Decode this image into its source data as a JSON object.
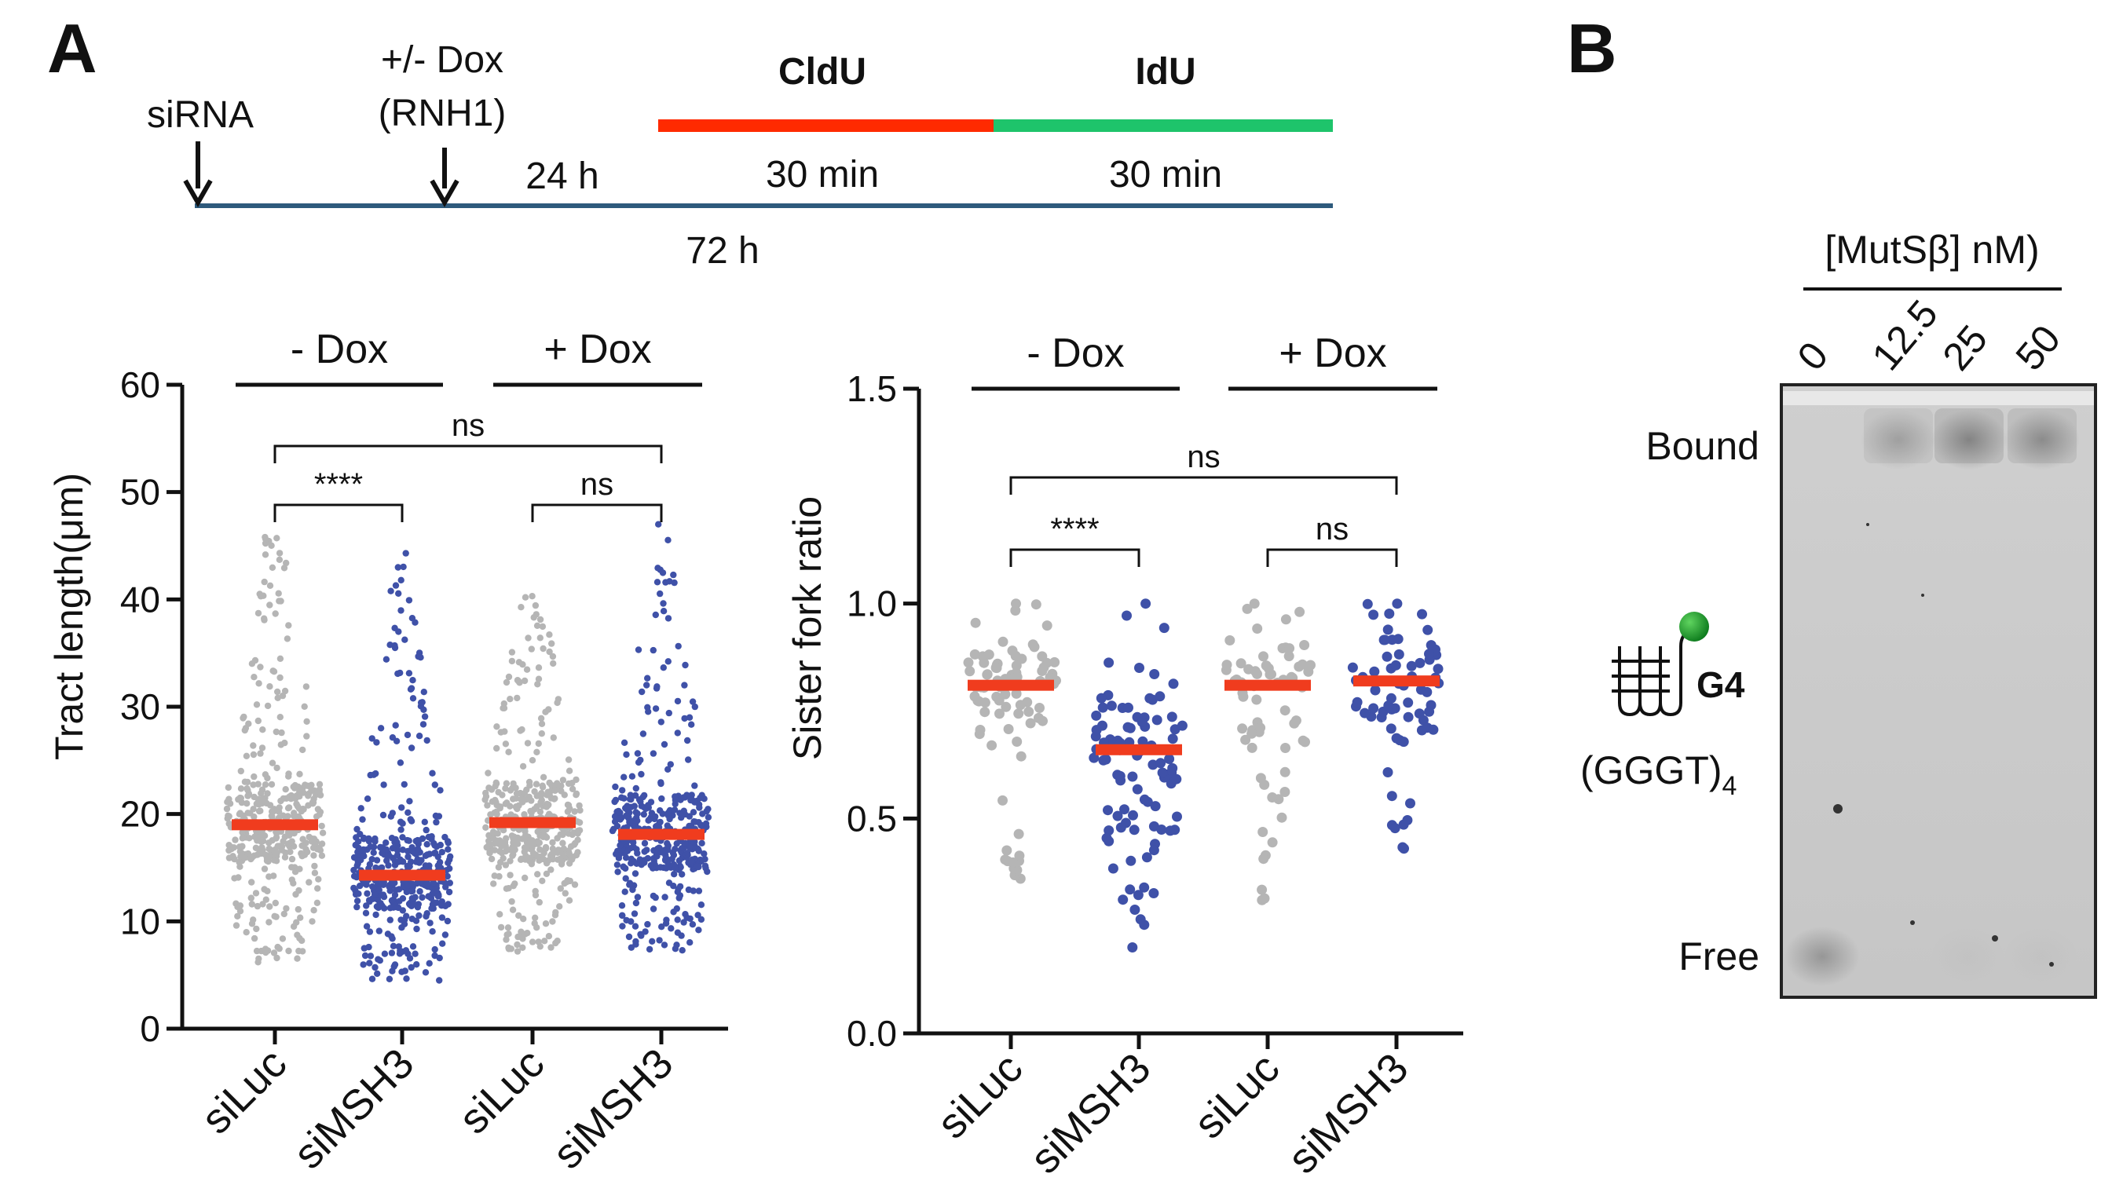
{
  "panels": {
    "a_label": "A",
    "b_label": "B"
  },
  "timeline": {
    "sirna_label": "siRNA",
    "dox_label_line1": "+/- Dox",
    "dox_label_line2": "(RNH1)",
    "interval_24h": "24 h",
    "interval_72h": "72 h",
    "cldu_label": "CldU",
    "idu_label": "IdU",
    "cldu_duration": "30 min",
    "idu_duration": "30 min",
    "colors": {
      "cldu": "#ff2a00",
      "idu": "#1ec46b",
      "baseline": "#2e5a7c"
    }
  },
  "chart_data": [
    {
      "type": "scatter",
      "subtype": "dot-plot with median bars",
      "ylabel": "Tract length(μm)",
      "ylim": [
        0,
        60
      ],
      "yticks": [
        0,
        10,
        20,
        30,
        40,
        50,
        60
      ],
      "categories": [
        "siLuc",
        "siMSH3",
        "siLuc",
        "siMSH3"
      ],
      "groups": [
        {
          "label": "- Dox",
          "categories": [
            0,
            1
          ]
        },
        {
          "label": "+ Dox",
          "categories": [
            2,
            3
          ]
        }
      ],
      "series": [
        {
          "name": "siLuc (- Dox)",
          "color": "#b5b5b5",
          "median": 19.0,
          "min": 6.2,
          "max": 45.8,
          "q1": 15.5,
          "q3": 22.8,
          "n": 430
        },
        {
          "name": "siMSH3 (- Dox)",
          "color": "#3f51a8",
          "median": 14.3,
          "min": 4.5,
          "max": 44.3,
          "q1": 11.2,
          "q3": 17.9,
          "n": 430
        },
        {
          "name": "siLuc (+ Dox)",
          "color": "#b5b5b5",
          "median": 19.2,
          "min": 7.2,
          "max": 40.3,
          "q1": 15.6,
          "q3": 23.0,
          "n": 430
        },
        {
          "name": "siMSH3 (+ Dox)",
          "color": "#3f51a8",
          "median": 18.1,
          "min": 7.3,
          "max": 47.0,
          "q1": 14.8,
          "q3": 21.8,
          "n": 430
        }
      ],
      "median_color": "#f03c1e",
      "comparisons": [
        {
          "from": 0,
          "to": 1,
          "label": "****"
        },
        {
          "from": 2,
          "to": 3,
          "label": "ns"
        },
        {
          "from": 0,
          "to": 3,
          "label": "ns"
        }
      ]
    },
    {
      "type": "scatter",
      "subtype": "dot-plot with median bars",
      "ylabel": "Sister fork ratio",
      "ylim": [
        0.0,
        1.5
      ],
      "yticks": [
        0.0,
        0.5,
        1.0,
        1.5
      ],
      "ytick_labels": [
        "0.0",
        "0.5",
        "1.0",
        "1.5"
      ],
      "categories": [
        "siLuc",
        "siMSH3",
        "siLuc",
        "siMSH3"
      ],
      "groups": [
        {
          "label": "- Dox",
          "categories": [
            0,
            1
          ]
        },
        {
          "label": "+ Dox",
          "categories": [
            2,
            3
          ]
        }
      ],
      "series": [
        {
          "name": "siLuc (- Dox)",
          "color": "#b5b5b5",
          "median": 0.81,
          "min": 0.36,
          "max": 1.0,
          "q1": 0.72,
          "q3": 0.9,
          "n": 85
        },
        {
          "name": "siMSH3 (- Dox)",
          "color": "#3f51a8",
          "median": 0.66,
          "min": 0.2,
          "max": 1.0,
          "q1": 0.47,
          "q3": 0.81,
          "n": 95
        },
        {
          "name": "siLuc (+ Dox)",
          "color": "#b5b5b5",
          "median": 0.81,
          "min": 0.31,
          "max": 1.0,
          "q1": 0.65,
          "q3": 0.92,
          "n": 70
        },
        {
          "name": "siMSH3 (+ Dox)",
          "color": "#3f51a8",
          "median": 0.82,
          "min": 0.43,
          "max": 1.0,
          "q1": 0.7,
          "q3": 0.92,
          "n": 70
        }
      ],
      "median_color": "#f03c1e",
      "comparisons": [
        {
          "from": 0,
          "to": 1,
          "label": "****"
        },
        {
          "from": 2,
          "to": 3,
          "label": "ns"
        },
        {
          "from": 0,
          "to": 3,
          "label": "ns"
        }
      ]
    }
  ],
  "gel": {
    "title": "[MutSβ] nM)",
    "lanes": [
      "0",
      "12.5",
      "25",
      "50"
    ],
    "bound_label": "Bound",
    "free_label": "Free",
    "g4_label": "G4",
    "substrate_label": "(GGGT)",
    "substrate_subscript": "4",
    "bound_intensity": [
      0.0,
      0.45,
      0.8,
      0.7
    ],
    "free_intensity": [
      0.55,
      0.0,
      0.05,
      0.05
    ]
  }
}
